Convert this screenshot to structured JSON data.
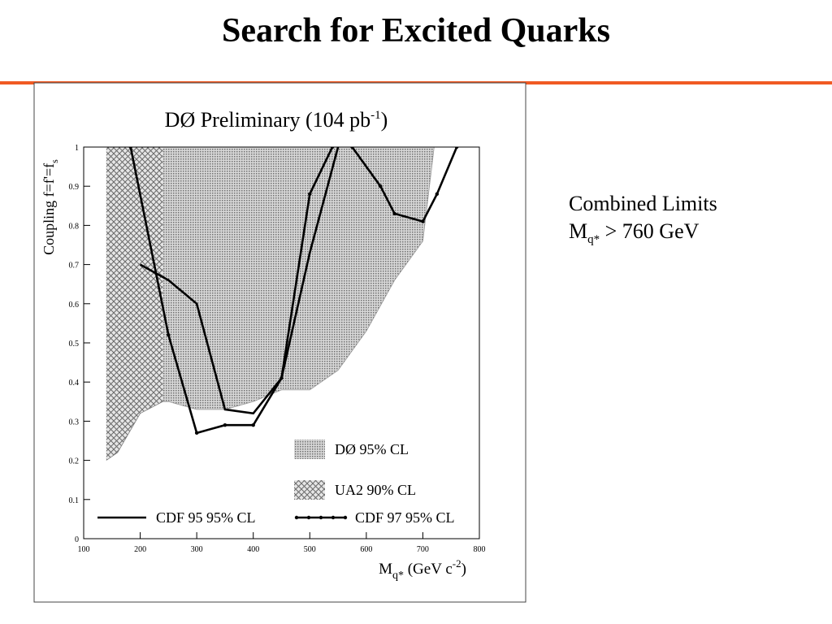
{
  "slide": {
    "title": "Search for Excited Quarks",
    "note": {
      "line1": "Combined Limits",
      "line2_main": "M",
      "line2_sub": "q*",
      "line2_rest": " > 760 GeV"
    }
  },
  "chart_data": {
    "type": "line",
    "title": {
      "text": "DØ Preliminary (104 pb",
      "sup": "-1",
      "end": ")"
    },
    "ylabel": {
      "text": "Coupling f=f'=f",
      "sub": "s"
    },
    "xlabel": {
      "text": "M",
      "sub": "q*",
      "mid": " (GeV c",
      "sup": "-2",
      "end": ")"
    },
    "xlim": [
      100,
      800
    ],
    "xticks": [
      100,
      200,
      300,
      400,
      500,
      600,
      700,
      800
    ],
    "ylim": [
      0,
      1
    ],
    "yticks": [
      0,
      0.1,
      0.2,
      0.3,
      0.4,
      0.5,
      0.6,
      0.7,
      0.8,
      0.9,
      1
    ],
    "series": [
      {
        "name": "DØ 95% CL",
        "kind": "area",
        "pattern": "dots",
        "color": "#9a9a9a",
        "x": [
          200,
          250,
          300,
          350,
          400,
          450,
          500,
          550,
          600,
          650,
          700,
          720
        ],
        "values": [
          0.35,
          0.35,
          0.33,
          0.33,
          0.35,
          0.38,
          0.38,
          0.43,
          0.53,
          0.66,
          0.76,
          1
        ]
      },
      {
        "name": "UA2 90% CL",
        "kind": "area",
        "pattern": "crosshatch",
        "color": "#808080",
        "x": [
          140,
          160,
          200,
          240
        ],
        "values": [
          0.2,
          0.22,
          0.32,
          0.35
        ]
      },
      {
        "name": "CDF 95 95% CL",
        "kind": "line",
        "marker": false,
        "color": "#000000",
        "x": [
          200,
          250,
          300,
          350,
          400,
          450,
          500,
          550
        ],
        "values": [
          0.7,
          0.66,
          0.6,
          0.33,
          0.32,
          0.41,
          0.73,
          1
        ]
      },
      {
        "name": "CDF 97 95% CL",
        "kind": "line",
        "marker": true,
        "color": "#000000",
        "x": [
          183,
          250,
          300,
          350,
          400,
          450,
          500,
          540,
          560,
          575,
          625,
          650,
          700,
          725,
          760
        ],
        "values": [
          1,
          0.52,
          0.27,
          0.29,
          0.29,
          0.41,
          0.88,
          1,
          null,
          1,
          0.9,
          0.83,
          0.81,
          0.88,
          1
        ]
      }
    ]
  }
}
